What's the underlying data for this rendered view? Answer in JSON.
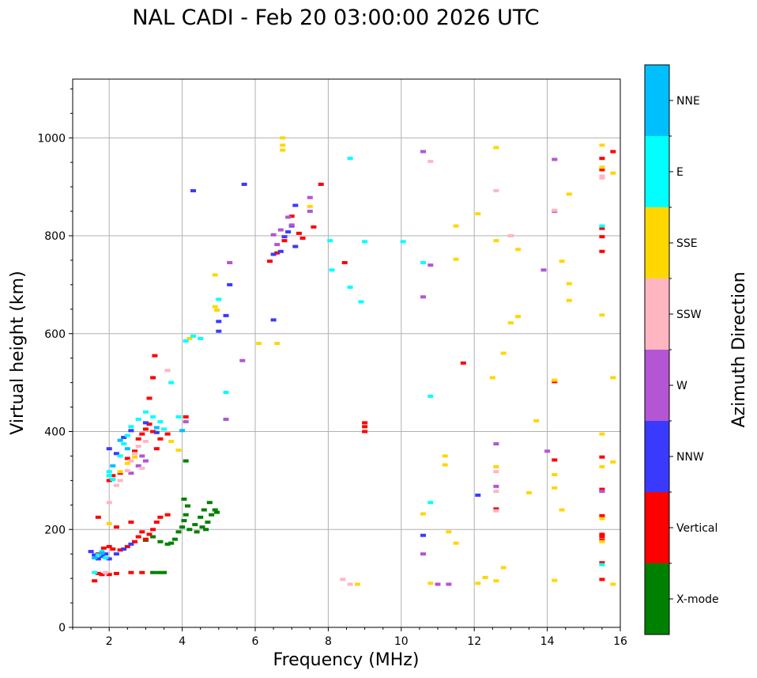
{
  "chart_data": {
    "type": "scatter",
    "title": "NAL CADI - Feb 20 03:00:00 2026 UTC",
    "xlabel": "Frequency (MHz)",
    "ylabel": "Virtual height (km)",
    "xlim": [
      1,
      16
    ],
    "ylim": [
      0,
      1120
    ],
    "xticks": [
      2,
      4,
      6,
      8,
      10,
      12,
      14,
      16
    ],
    "yticks": [
      0,
      200,
      400,
      600,
      800,
      1000
    ],
    "grid": true,
    "colorbar": {
      "label": "Azimuth Direction",
      "categories": [
        "X-mode",
        "Vertical",
        "NNW",
        "W",
        "SSW",
        "SSE",
        "E",
        "NNE"
      ],
      "colors": [
        "#008000",
        "#ff0000",
        "#3a3aff",
        "#b455d4",
        "#ffb6c1",
        "#ffd700",
        "#00ffff",
        "#00bfff"
      ]
    },
    "series": [
      {
        "name": "X-mode",
        "points": [
          [
            3.2,
            112
          ],
          [
            3.35,
            112
          ],
          [
            3.5,
            112
          ],
          [
            3.0,
            178
          ],
          [
            3.2,
            185
          ],
          [
            3.4,
            175
          ],
          [
            3.6,
            170
          ],
          [
            3.8,
            180
          ],
          [
            3.9,
            195
          ],
          [
            4.0,
            205
          ],
          [
            4.05,
            218
          ],
          [
            4.1,
            230
          ],
          [
            4.15,
            248
          ],
          [
            4.05,
            262
          ],
          [
            4.2,
            200
          ],
          [
            4.35,
            210
          ],
          [
            4.5,
            225
          ],
          [
            4.55,
            205
          ],
          [
            4.6,
            240
          ],
          [
            4.7,
            215
          ],
          [
            4.75,
            255
          ],
          [
            4.8,
            230
          ],
          [
            4.9,
            240
          ],
          [
            4.95,
            235
          ],
          [
            4.65,
            200
          ],
          [
            4.4,
            195
          ],
          [
            4.1,
            340
          ],
          [
            3.7,
            172
          ]
        ]
      },
      {
        "name": "Vertical",
        "points": [
          [
            1.6,
            95
          ],
          [
            1.7,
            110
          ],
          [
            1.8,
            108
          ],
          [
            2.0,
            108
          ],
          [
            2.2,
            110
          ],
          [
            2.6,
            112
          ],
          [
            2.9,
            112
          ],
          [
            1.7,
            150
          ],
          [
            1.85,
            162
          ],
          [
            2.0,
            165
          ],
          [
            2.1,
            160
          ],
          [
            2.3,
            158
          ],
          [
            2.5,
            165
          ],
          [
            2.7,
            175
          ],
          [
            2.8,
            185
          ],
          [
            2.9,
            195
          ],
          [
            3.0,
            180
          ],
          [
            3.1,
            190
          ],
          [
            3.2,
            200
          ],
          [
            3.3,
            215
          ],
          [
            3.4,
            225
          ],
          [
            3.6,
            230
          ],
          [
            2.2,
            205
          ],
          [
            2.6,
            215
          ],
          [
            1.7,
            225
          ],
          [
            2.0,
            300
          ],
          [
            2.1,
            310
          ],
          [
            2.3,
            315
          ],
          [
            2.5,
            345
          ],
          [
            2.7,
            360
          ],
          [
            2.8,
            385
          ],
          [
            2.9,
            395
          ],
          [
            3.0,
            405
          ],
          [
            3.1,
            415
          ],
          [
            3.2,
            400
          ],
          [
            3.3,
            365
          ],
          [
            3.4,
            385
          ],
          [
            3.6,
            395
          ],
          [
            3.1,
            468
          ],
          [
            3.2,
            510
          ],
          [
            3.25,
            555
          ],
          [
            4.1,
            430
          ],
          [
            6.4,
            748
          ],
          [
            6.6,
            765
          ],
          [
            6.8,
            790
          ],
          [
            7.0,
            840
          ],
          [
            7.2,
            805
          ],
          [
            7.3,
            795
          ],
          [
            7.6,
            818
          ],
          [
            7.8,
            905
          ],
          [
            8.45,
            745
          ],
          [
            9.0,
            418
          ],
          [
            9.0,
            410
          ],
          [
            9.0,
            400
          ],
          [
            11.7,
            540
          ],
          [
            12.6,
            242
          ],
          [
            14.2,
            342
          ],
          [
            14.2,
            502
          ],
          [
            15.5,
            98
          ],
          [
            15.5,
            132
          ],
          [
            15.5,
            178
          ],
          [
            15.5,
            185
          ],
          [
            15.5,
            190
          ],
          [
            15.5,
            228
          ],
          [
            15.5,
            282
          ],
          [
            15.5,
            348
          ],
          [
            15.5,
            768
          ],
          [
            15.5,
            798
          ],
          [
            15.5,
            815
          ],
          [
            15.5,
            935
          ],
          [
            15.5,
            958
          ],
          [
            15.8,
            972
          ]
        ]
      },
      {
        "name": "NNW",
        "points": [
          [
            1.6,
            148
          ],
          [
            1.7,
            140
          ],
          [
            1.8,
            145
          ],
          [
            1.9,
            150
          ],
          [
            2.0,
            140
          ],
          [
            2.2,
            150
          ],
          [
            2.4,
            160
          ],
          [
            2.6,
            170
          ],
          [
            1.5,
            155
          ],
          [
            2.0,
            365
          ],
          [
            2.2,
            355
          ],
          [
            2.4,
            388
          ],
          [
            2.6,
            402
          ],
          [
            3.0,
            418
          ],
          [
            3.3,
            398
          ],
          [
            4.3,
            892
          ],
          [
            5.0,
            605
          ],
          [
            5.0,
            625
          ],
          [
            5.2,
            637
          ],
          [
            5.3,
            700
          ],
          [
            5.7,
            905
          ],
          [
            6.5,
            628
          ],
          [
            6.5,
            762
          ],
          [
            6.7,
            768
          ],
          [
            6.8,
            798
          ],
          [
            6.9,
            808
          ],
          [
            7.0,
            820
          ],
          [
            7.1,
            862
          ],
          [
            7.1,
            778
          ],
          [
            10.6,
            188
          ],
          [
            12.1,
            270
          ],
          [
            15.5,
            278
          ]
        ]
      },
      {
        "name": "W",
        "points": [
          [
            2.6,
            315
          ],
          [
            2.8,
            330
          ],
          [
            2.9,
            350
          ],
          [
            3.0,
            340
          ],
          [
            4.1,
            420
          ],
          [
            5.2,
            425
          ],
          [
            5.3,
            745
          ],
          [
            5.65,
            545
          ],
          [
            6.5,
            802
          ],
          [
            6.6,
            782
          ],
          [
            6.7,
            812
          ],
          [
            6.9,
            838
          ],
          [
            7.0,
            822
          ],
          [
            7.5,
            878
          ],
          [
            7.5,
            850
          ],
          [
            10.6,
            150
          ],
          [
            10.6,
            675
          ],
          [
            10.6,
            972
          ],
          [
            10.8,
            740
          ],
          [
            11.0,
            88
          ],
          [
            11.3,
            88
          ],
          [
            12.6,
            375
          ],
          [
            12.6,
            288
          ],
          [
            13.0,
            800
          ],
          [
            13.9,
            730
          ],
          [
            14.0,
            360
          ],
          [
            14.2,
            956
          ],
          [
            14.2,
            850
          ],
          [
            15.5,
            278
          ]
        ]
      },
      {
        "name": "SSW",
        "points": [
          [
            1.9,
            112
          ],
          [
            2.0,
            255
          ],
          [
            2.2,
            290
          ],
          [
            2.3,
            300
          ],
          [
            2.5,
            320
          ],
          [
            2.6,
            340
          ],
          [
            2.7,
            355
          ],
          [
            2.8,
            370
          ],
          [
            2.9,
            325
          ],
          [
            3.0,
            380
          ],
          [
            3.6,
            525
          ],
          [
            8.4,
            98
          ],
          [
            8.6,
            88
          ],
          [
            10.8,
            952
          ],
          [
            12.6,
            892
          ],
          [
            12.6,
            318
          ],
          [
            12.6,
            278
          ],
          [
            12.6,
            238
          ],
          [
            13.0,
            800
          ],
          [
            14.2,
            852
          ],
          [
            15.5,
            918
          ],
          [
            15.5,
            922
          ]
        ]
      },
      {
        "name": "SSE",
        "points": [
          [
            2.0,
            212
          ],
          [
            2.3,
            318
          ],
          [
            2.5,
            335
          ],
          [
            2.7,
            348
          ],
          [
            3.7,
            380
          ],
          [
            3.9,
            362
          ],
          [
            4.2,
            590
          ],
          [
            4.9,
            720
          ],
          [
            4.9,
            655
          ],
          [
            4.95,
            648
          ],
          [
            6.1,
            580
          ],
          [
            6.6,
            580
          ],
          [
            6.75,
            1000
          ],
          [
            6.75,
            985
          ],
          [
            6.75,
            975
          ],
          [
            7.5,
            860
          ],
          [
            8.8,
            88
          ],
          [
            10.6,
            232
          ],
          [
            10.8,
            90
          ],
          [
            11.2,
            350
          ],
          [
            11.2,
            332
          ],
          [
            11.3,
            195
          ],
          [
            11.5,
            172
          ],
          [
            11.5,
            820
          ],
          [
            11.5,
            752
          ],
          [
            12.1,
            90
          ],
          [
            12.1,
            845
          ],
          [
            12.3,
            102
          ],
          [
            12.5,
            510
          ],
          [
            12.6,
            980
          ],
          [
            12.6,
            790
          ],
          [
            12.6,
            328
          ],
          [
            12.6,
            95
          ],
          [
            12.8,
            122
          ],
          [
            12.8,
            560
          ],
          [
            13.0,
            622
          ],
          [
            13.2,
            635
          ],
          [
            13.2,
            772
          ],
          [
            13.5,
            275
          ],
          [
            13.7,
            422
          ],
          [
            14.2,
            96
          ],
          [
            14.2,
            505
          ],
          [
            14.2,
            312
          ],
          [
            14.2,
            285
          ],
          [
            14.4,
            240
          ],
          [
            14.4,
            748
          ],
          [
            14.6,
            885
          ],
          [
            14.6,
            702
          ],
          [
            14.6,
            668
          ],
          [
            15.5,
            985
          ],
          [
            15.5,
            940
          ],
          [
            15.5,
            638
          ],
          [
            15.5,
            395
          ],
          [
            15.5,
            328
          ],
          [
            15.5,
            222
          ],
          [
            15.5,
            175
          ],
          [
            15.8,
            928
          ],
          [
            15.8,
            510
          ],
          [
            15.8,
            338
          ],
          [
            15.8,
            88
          ]
        ]
      },
      {
        "name": "E",
        "points": [
          [
            1.6,
            112
          ],
          [
            1.7,
            148
          ],
          [
            1.8,
            155
          ],
          [
            1.9,
            142
          ],
          [
            2.0,
            318
          ],
          [
            2.0,
            310
          ],
          [
            2.1,
            302
          ],
          [
            2.3,
            350
          ],
          [
            2.4,
            375
          ],
          [
            2.5,
            392
          ],
          [
            2.6,
            410
          ],
          [
            2.8,
            425
          ],
          [
            3.0,
            440
          ],
          [
            3.2,
            430
          ],
          [
            3.4,
            420
          ],
          [
            3.5,
            405
          ],
          [
            3.7,
            500
          ],
          [
            3.9,
            430
          ],
          [
            4.1,
            585
          ],
          [
            4.3,
            595
          ],
          [
            4.5,
            590
          ],
          [
            5.0,
            670
          ],
          [
            5.2,
            480
          ],
          [
            8.05,
            790
          ],
          [
            8.1,
            730
          ],
          [
            8.6,
            958
          ],
          [
            8.6,
            695
          ],
          [
            8.9,
            665
          ],
          [
            9.0,
            788
          ],
          [
            10.05,
            788
          ],
          [
            10.6,
            745
          ],
          [
            10.8,
            472
          ],
          [
            10.8,
            255
          ],
          [
            15.5,
            820
          ],
          [
            15.5,
            128
          ]
        ]
      },
      {
        "name": "NNE",
        "points": [
          [
            1.6,
            142
          ],
          [
            1.8,
            152
          ],
          [
            2.1,
            330
          ],
          [
            2.3,
            382
          ],
          [
            2.5,
            365
          ],
          [
            3.3,
            408
          ],
          [
            4.0,
            402
          ]
        ]
      }
    ]
  }
}
